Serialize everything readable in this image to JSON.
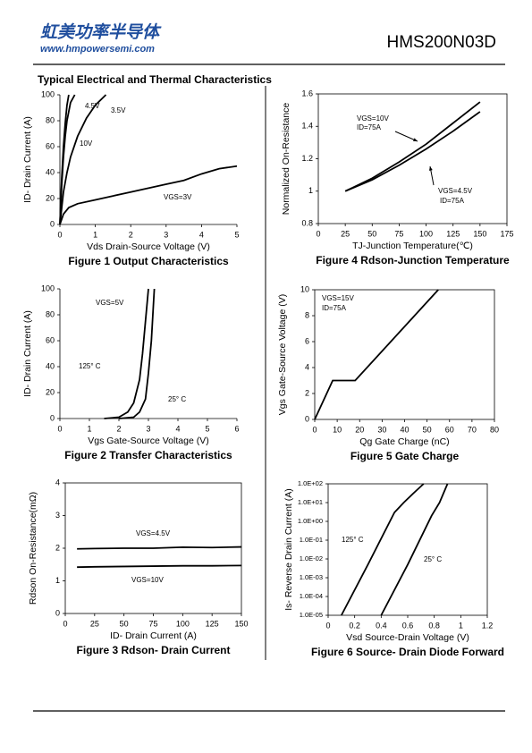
{
  "header": {
    "brand": "虹美功率半导体",
    "website": "www.hmpowersemi.com",
    "part": "HMS200N03D"
  },
  "section_title": "Typical Electrical and Thermal Characteristics",
  "chart_data": [
    {
      "type": "line",
      "title": "Figure 1 Output Characteristics",
      "xlabel": "Vds Drain-Source Voltage (V)",
      "ylabel": "ID- Drain Current (A)",
      "xlim": [
        0,
        5
      ],
      "ylim": [
        0,
        100
      ],
      "xticks": [
        0,
        1,
        2,
        3,
        4,
        5
      ],
      "yticks": [
        0,
        20,
        40,
        60,
        80,
        100
      ],
      "box": false,
      "series": [
        {
          "name": "4.5V",
          "color": "#000000",
          "x": [
            0,
            0.05,
            0.1,
            0.15,
            0.2,
            0.3,
            0.42
          ],
          "values": [
            0,
            30,
            52,
            68,
            80,
            94,
            100
          ]
        },
        {
          "name": "3.5V",
          "color": "#000000",
          "x": [
            0,
            0.1,
            0.2,
            0.3,
            0.5,
            0.75,
            1,
            1.3
          ],
          "values": [
            0,
            25,
            40,
            52,
            68,
            82,
            92,
            100
          ]
        },
        {
          "name": "10V",
          "color": "#000000",
          "x": [
            0,
            0.05,
            0.1,
            0.15,
            0.2,
            0.25
          ],
          "values": [
            0,
            35,
            60,
            78,
            92,
            100
          ]
        },
        {
          "name": "VGS=3V",
          "color": "#000000",
          "x": [
            0,
            0.1,
            0.25,
            0.5,
            1,
            1.5,
            2,
            2.5,
            3,
            3.5,
            4,
            4.5,
            5
          ],
          "values": [
            0,
            8,
            13,
            16,
            19,
            22,
            25,
            28,
            31,
            34,
            39,
            43,
            45
          ]
        }
      ]
    },
    {
      "type": "line",
      "title": "Figure 2 Transfer Characteristics",
      "xlabel": "Vgs Gate-Source Voltage (V)",
      "ylabel": "ID- Drain Current (A)",
      "xlim": [
        0,
        6
      ],
      "ylim": [
        0,
        100
      ],
      "xticks": [
        0,
        1,
        2,
        3,
        4,
        5,
        6
      ],
      "yticks": [
        0,
        20,
        40,
        60,
        80,
        100
      ],
      "box": false,
      "annotations": [
        "VGS=5V"
      ],
      "series": [
        {
          "name": "125° C",
          "color": "#000000",
          "x": [
            1.5,
            2,
            2.3,
            2.5,
            2.7,
            2.8,
            2.9,
            3.0
          ],
          "values": [
            0,
            1,
            5,
            12,
            30,
            50,
            75,
            100
          ]
        },
        {
          "name": "25° C",
          "color": "#000000",
          "x": [
            2,
            2.5,
            2.7,
            2.9,
            3.0,
            3.1,
            3.15,
            3.2
          ],
          "values": [
            0,
            1,
            5,
            15,
            35,
            60,
            80,
            100
          ]
        }
      ]
    },
    {
      "type": "line",
      "title": "Figure 3 Rdson- Drain Current",
      "xlabel": "ID- Drain Current (A)",
      "ylabel": "Rdson On-Resistance(mΩ)",
      "xlim": [
        0,
        150
      ],
      "ylim": [
        0,
        4
      ],
      "xticks": [
        0,
        25,
        50,
        75,
        100,
        125,
        150
      ],
      "yticks": [
        0,
        1,
        2,
        3,
        4
      ],
      "box": true,
      "series": [
        {
          "name": "VGS=4.5V",
          "color": "#000000",
          "x": [
            10,
            25,
            50,
            75,
            100,
            125,
            150
          ],
          "values": [
            1.98,
            1.99,
            2.0,
            2.0,
            2.03,
            2.02,
            2.04
          ]
        },
        {
          "name": "VGS=10V",
          "color": "#000000",
          "x": [
            10,
            25,
            50,
            75,
            100,
            125,
            150
          ],
          "values": [
            1.42,
            1.43,
            1.44,
            1.45,
            1.46,
            1.46,
            1.47
          ]
        }
      ]
    },
    {
      "type": "line",
      "title": "Figure 4 Rdson-Junction Temperature",
      "xlabel": "TJ-Junction Temperature(℃)",
      "ylabel": "Normalized On-Resistance",
      "xlim": [
        0,
        175
      ],
      "ylim": [
        0.8,
        1.6
      ],
      "xticks": [
        0,
        25,
        50,
        75,
        100,
        125,
        150,
        175
      ],
      "yticks": [
        0.8,
        1,
        1.2,
        1.4,
        1.6
      ],
      "box": true,
      "annotations": [
        "ID=75A",
        "ID=75A"
      ],
      "series": [
        {
          "name": "VGS=10V",
          "color": "#000000",
          "x": [
            25,
            50,
            75,
            100,
            125,
            150
          ],
          "values": [
            1,
            1.08,
            1.18,
            1.29,
            1.42,
            1.55
          ]
        },
        {
          "name": "VGS=4.5V",
          "color": "#000000",
          "x": [
            25,
            50,
            75,
            100,
            125,
            150
          ],
          "values": [
            1,
            1.07,
            1.16,
            1.26,
            1.37,
            1.49
          ]
        }
      ]
    },
    {
      "type": "line",
      "title": "Figure 5 Gate Charge",
      "xlabel": "Qg Gate Charge (nC)",
      "ylabel": "Vgs Gate-Source Voltage (V)",
      "xlim": [
        0,
        80
      ],
      "ylim": [
        0,
        10
      ],
      "xticks": [
        0,
        10,
        20,
        30,
        40,
        50,
        60,
        70,
        80
      ],
      "yticks": [
        0,
        2,
        4,
        6,
        8,
        10
      ],
      "box": true,
      "annotations": [
        "VGS=15V",
        "ID=75A"
      ],
      "series": [
        {
          "name": "Qg",
          "color": "#000000",
          "x": [
            0,
            8,
            18,
            55
          ],
          "values": [
            0,
            3,
            3,
            10
          ]
        }
      ]
    },
    {
      "type": "line",
      "title": "Figure 6 Source- Drain Diode Forward",
      "xlabel": "Vsd Source-Drain Voltage (V)",
      "ylabel": "Is- Reverse Drain Current (A)",
      "xlim": [
        0,
        1.2
      ],
      "ylim": [
        1e-05,
        100
      ],
      "log_scale": "y",
      "box": true,
      "xticks": [
        0,
        0.2,
        0.4,
        0.6,
        0.8,
        1,
        1.2
      ],
      "yticks": [
        {
          "value": 1e-05,
          "label": "1.0E-05"
        },
        {
          "value": 0.0001,
          "label": "1.0E-04"
        },
        {
          "value": 0.001,
          "label": "1.0E-03"
        },
        {
          "value": 0.01,
          "label": "1.0E-02"
        },
        {
          "value": 0.1,
          "label": "1.0E-01"
        },
        {
          "value": 1,
          "label": "1.0E+00"
        },
        {
          "value": 10,
          "label": "1.0E+01"
        },
        {
          "value": 100,
          "label": "1.0E+02"
        }
      ],
      "series": [
        {
          "name": "125° C",
          "color": "#000000",
          "x": [
            0.1,
            0.3,
            0.5,
            0.57,
            0.64,
            0.72
          ],
          "values": [
            1e-05,
            0.005,
            3,
            10,
            30,
            100
          ]
        },
        {
          "name": "25° C",
          "color": "#000000",
          "x": [
            0.4,
            0.6,
            0.78,
            0.84,
            0.9
          ],
          "values": [
            1e-05,
            0.005,
            2,
            10,
            100
          ]
        }
      ]
    }
  ]
}
